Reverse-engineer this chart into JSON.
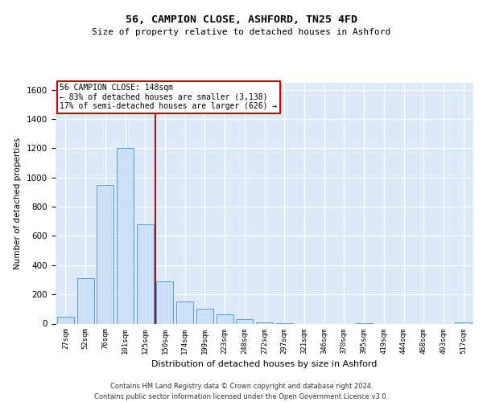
{
  "title1": "56, CAMPION CLOSE, ASHFORD, TN25 4FD",
  "title2": "Size of property relative to detached houses in Ashford",
  "xlabel": "Distribution of detached houses by size in Ashford",
  "ylabel": "Number of detached properties",
  "footer1": "Contains HM Land Registry data © Crown copyright and database right 2024.",
  "footer2": "Contains public sector information licensed under the Open Government Licence v3.0.",
  "annotation_line1": "56 CAMPION CLOSE: 148sqm",
  "annotation_line2": "← 83% of detached houses are smaller (3,138)",
  "annotation_line3": "17% of semi-detached houses are larger (626) →",
  "bar_edge_color": "#5b9bd5",
  "bar_face_color": "#cce0f5",
  "redline_color": "#cc0000",
  "background_color": "#dce9f7",
  "grid_color": "#ffffff",
  "ylim": [
    0,
    1650
  ],
  "yticks": [
    0,
    200,
    400,
    600,
    800,
    1000,
    1200,
    1400,
    1600
  ],
  "bin_labels": [
    "27sqm",
    "52sqm",
    "76sqm",
    "101sqm",
    "125sqm",
    "150sqm",
    "174sqm",
    "199sqm",
    "223sqm",
    "248sqm",
    "272sqm",
    "297sqm",
    "321sqm",
    "346sqm",
    "370sqm",
    "395sqm",
    "419sqm",
    "444sqm",
    "468sqm",
    "493sqm",
    "517sqm"
  ],
  "bar_values": [
    48,
    310,
    950,
    1200,
    680,
    290,
    150,
    100,
    65,
    30,
    8,
    3,
    0,
    0,
    0,
    3,
    0,
    0,
    0,
    0,
    8
  ],
  "redline_x": 4.5
}
